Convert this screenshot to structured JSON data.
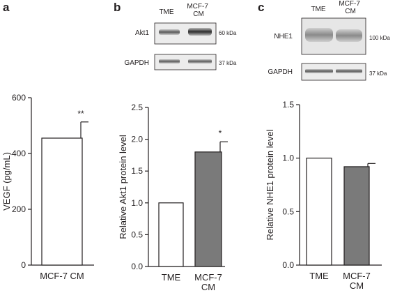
{
  "panels": {
    "a": {
      "label": "a"
    },
    "b": {
      "label": "b",
      "blot": {
        "lanes": [
          "TME",
          "MCF-7\nCM"
        ],
        "rows": [
          {
            "protein": "Akt1",
            "size": "60 kDa"
          },
          {
            "protein": "GAPDH",
            "size": "37 kDa"
          }
        ]
      }
    },
    "c": {
      "label": "c",
      "blot": {
        "lanes": [
          "TME",
          "MCF-7\nCM"
        ],
        "rows": [
          {
            "protein": "NHE1",
            "size": "100 kDa"
          },
          {
            "protein": "GAPDH",
            "size": "37 kDa"
          }
        ]
      }
    }
  },
  "colors": {
    "white_bar": "#ffffff",
    "grey_bar": "#7a7a7a",
    "ink": "#231f20"
  },
  "chart_data": [
    {
      "id": "a",
      "type": "bar",
      "categories": [
        "MCF-7 CM"
      ],
      "values": [
        455
      ],
      "errors": [
        58
      ],
      "annotations": [
        "**"
      ],
      "fills": [
        "white"
      ],
      "ylabel": "VEGF (pg/mL)",
      "ylim": [
        0,
        600
      ],
      "yticks": [
        0,
        200,
        400,
        600
      ],
      "ytick_labels": [
        "0",
        "200",
        "400",
        "600"
      ],
      "xtick_labels": [
        "MCF-7 CM"
      ]
    },
    {
      "id": "b",
      "type": "bar",
      "categories": [
        "TME",
        "MCF-7 CM"
      ],
      "values": [
        1.0,
        1.8
      ],
      "errors": [
        0,
        0.16
      ],
      "annotations": [
        "",
        "*"
      ],
      "fills": [
        "white",
        "grey"
      ],
      "ylabel": "Relative Akt1 protein level",
      "ylim": [
        0,
        2.5
      ],
      "yticks": [
        0,
        0.5,
        1.0,
        1.5,
        2.0,
        2.5
      ],
      "ytick_labels": [
        "0.0",
        "0.5",
        "1.0",
        "1.5",
        "2.0",
        "2.5"
      ],
      "xtick_labels": [
        "TME",
        "MCF-7\nCM"
      ]
    },
    {
      "id": "c",
      "type": "bar",
      "categories": [
        "TME",
        "MCF-7 CM"
      ],
      "values": [
        1.0,
        0.92
      ],
      "errors": [
        0,
        0.03
      ],
      "annotations": [
        "",
        ""
      ],
      "fills": [
        "white",
        "grey"
      ],
      "ylabel": "Relative NHE1 protein level",
      "ylim": [
        0,
        1.5
      ],
      "yticks": [
        0,
        0.5,
        1.0,
        1.5
      ],
      "ytick_labels": [
        "0.0",
        "0.5",
        "1.0",
        "1.5"
      ],
      "xtick_labels": [
        "TME",
        "MCF-7\nCM"
      ]
    }
  ]
}
